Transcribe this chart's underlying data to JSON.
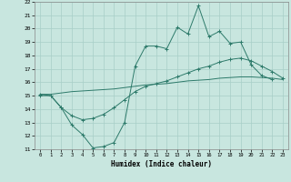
{
  "xlabel": "Humidex (Indice chaleur)",
  "xlim": [
    -0.5,
    23.5
  ],
  "ylim": [
    11,
    22
  ],
  "xticks": [
    0,
    1,
    2,
    3,
    4,
    5,
    6,
    7,
    8,
    9,
    10,
    11,
    12,
    13,
    14,
    15,
    16,
    17,
    18,
    19,
    20,
    21,
    22,
    23
  ],
  "yticks": [
    11,
    12,
    13,
    14,
    15,
    16,
    17,
    18,
    19,
    20,
    21,
    22
  ],
  "background_color": "#c8e6df",
  "grid_color": "#a8cfc8",
  "line_color": "#2d7a6a",
  "line1_x": [
    0,
    1,
    2,
    3,
    4,
    5,
    6,
    7,
    8,
    9,
    10,
    11,
    12,
    13,
    14,
    15,
    16,
    17,
    18,
    19,
    20,
    21,
    22
  ],
  "line1_y": [
    15.1,
    15.0,
    14.1,
    12.8,
    12.1,
    11.1,
    11.2,
    11.5,
    13.0,
    17.2,
    18.7,
    18.7,
    18.5,
    20.1,
    19.6,
    21.7,
    19.4,
    19.8,
    18.9,
    19.0,
    17.3,
    16.5,
    16.2
  ],
  "line2_x": [
    0,
    1,
    2,
    3,
    4,
    5,
    6,
    7,
    8,
    9,
    10,
    11,
    12,
    13,
    14,
    15,
    16,
    17,
    18,
    19,
    20,
    21,
    22,
    23
  ],
  "line2_y": [
    15.0,
    15.0,
    14.1,
    13.5,
    13.2,
    13.3,
    13.6,
    14.1,
    14.7,
    15.3,
    15.7,
    15.9,
    16.1,
    16.4,
    16.7,
    17.0,
    17.2,
    17.5,
    17.7,
    17.8,
    17.6,
    17.2,
    16.8,
    16.3
  ],
  "line3_x": [
    0,
    1,
    2,
    3,
    4,
    5,
    6,
    7,
    8,
    9,
    10,
    11,
    12,
    13,
    14,
    15,
    16,
    17,
    18,
    19,
    20,
    21,
    22,
    23
  ],
  "line3_y": [
    15.1,
    15.1,
    15.2,
    15.3,
    15.35,
    15.4,
    15.45,
    15.5,
    15.6,
    15.7,
    15.8,
    15.85,
    15.9,
    16.0,
    16.1,
    16.15,
    16.2,
    16.3,
    16.35,
    16.4,
    16.4,
    16.35,
    16.3,
    16.2
  ]
}
